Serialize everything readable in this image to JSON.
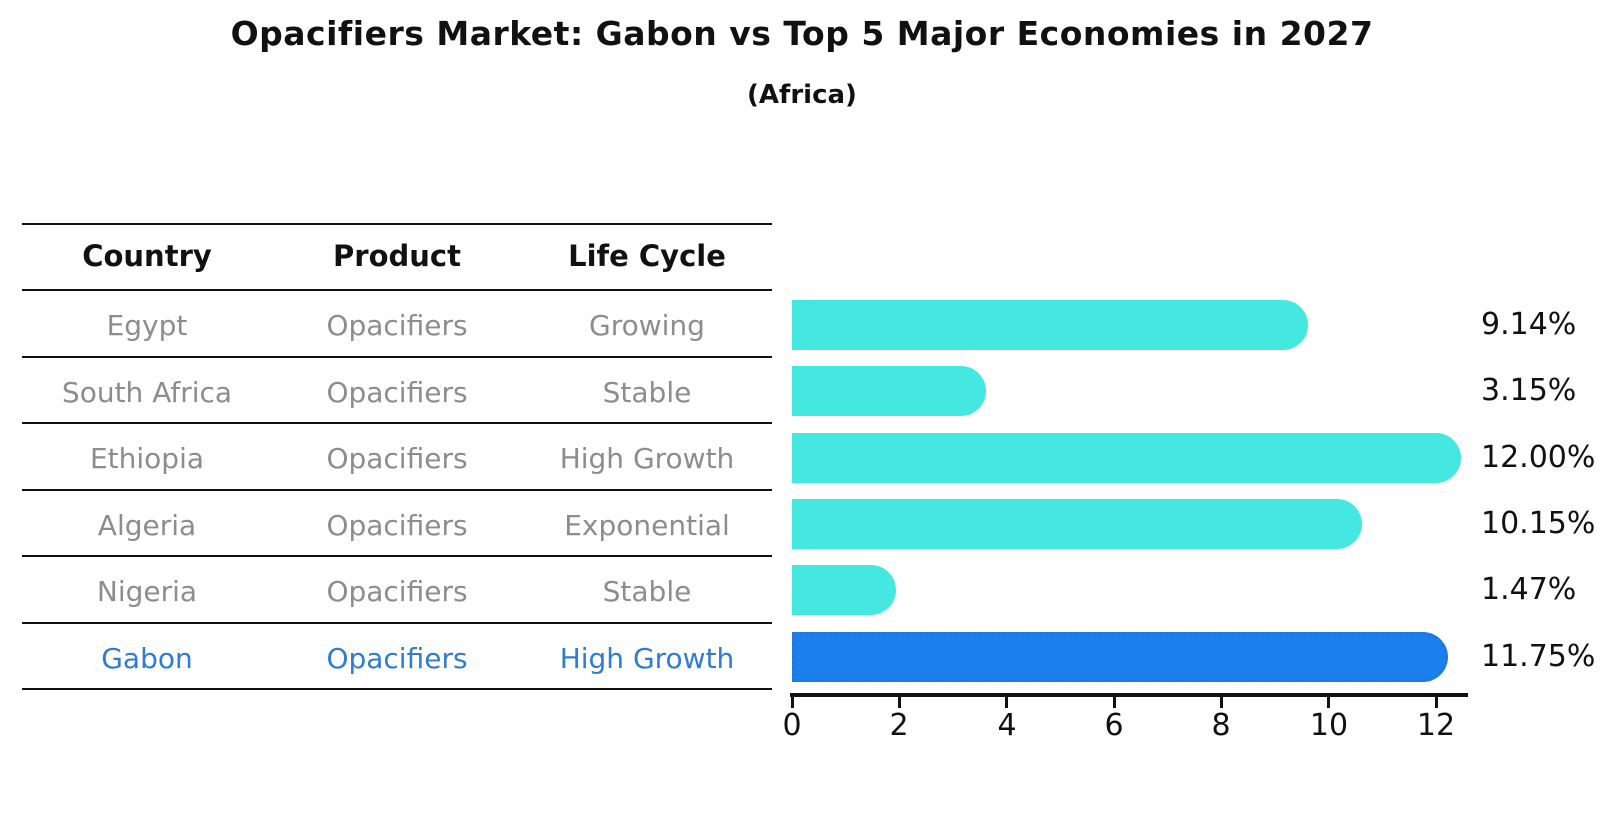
{
  "header": {
    "title": "Opacifiers Market: Gabon vs Top 5 Major Economies in 2027",
    "subtitle": "(Africa)"
  },
  "table": {
    "columns": [
      "Country",
      "Product",
      "Life Cycle"
    ],
    "rows": [
      {
        "country": "Egypt",
        "product": "Opacifiers",
        "life_cycle": "Growing"
      },
      {
        "country": "South Africa",
        "product": "Opacifiers",
        "life_cycle": "Stable"
      },
      {
        "country": "Ethiopia",
        "product": "Opacifiers",
        "life_cycle": "High Growth"
      },
      {
        "country": "Algeria",
        "product": "Opacifiers",
        "life_cycle": "Exponential"
      },
      {
        "country": "Nigeria",
        "product": "Opacifiers",
        "life_cycle": "Stable"
      },
      {
        "country": "Gabon",
        "product": "Opacifiers",
        "life_cycle": "High Growth"
      }
    ]
  },
  "chart_data": {
    "type": "bar",
    "orientation": "horizontal",
    "title": "Opacifiers Market: Gabon vs Top 5 Major Economies in 2027",
    "subtitle": "(Africa)",
    "categories": [
      "Egypt",
      "South Africa",
      "Ethiopia",
      "Algeria",
      "Nigeria",
      "Gabon"
    ],
    "values": [
      9.14,
      3.15,
      12.0,
      10.15,
      1.47,
      11.75
    ],
    "value_labels": [
      "9.14%",
      "3.15%",
      "12.00%",
      "10.15%",
      "1.47%",
      "11.75%"
    ],
    "xticks": [
      0,
      2,
      4,
      6,
      8,
      10,
      12
    ],
    "xlim": [
      0,
      12.6
    ],
    "grid": false,
    "legend": "none",
    "highlight_index": 5,
    "colors": {
      "bar": "#45e8e1",
      "highlight_bar": "#1a80ec",
      "highlight_border": "#2f6fd6",
      "row_text": "#8d8d8d",
      "highlight_text": "#2f7cd3",
      "text": "#111111"
    }
  }
}
